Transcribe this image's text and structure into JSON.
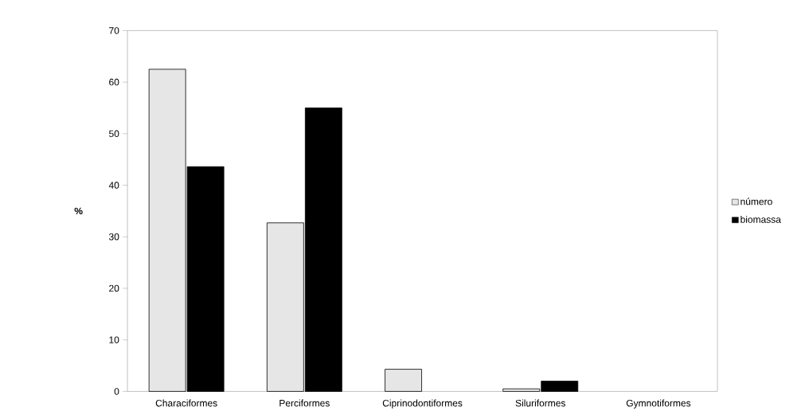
{
  "chart_data": {
    "type": "bar",
    "ylabel": "%",
    "categories": [
      "Characiformes",
      "Perciformes",
      "Ciprinodontiformes",
      "Siluriformes",
      "Gymnotiformes"
    ],
    "series": [
      {
        "name": "número",
        "color": "#e6e6e6",
        "values": [
          62.5,
          32.7,
          4.3,
          0.5,
          null
        ]
      },
      {
        "name": "biomassa",
        "color": "#000000",
        "values": [
          43.6,
          55.0,
          null,
          2.0,
          null
        ]
      }
    ],
    "ylim": [
      0,
      70
    ],
    "yticks": [
      0,
      10,
      20,
      30,
      40,
      50,
      60,
      70
    ],
    "grid": false,
    "legend": "right"
  }
}
